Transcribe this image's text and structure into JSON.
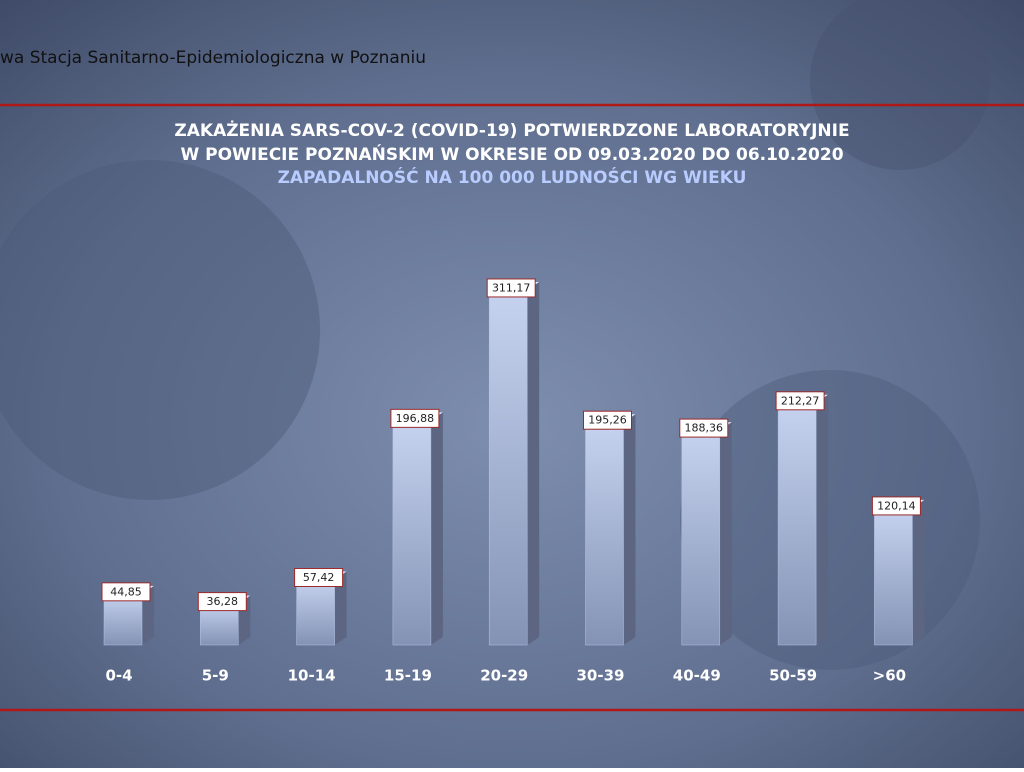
{
  "header": "wa Stacja Sanitarno-Epidemiologiczna w Poznaniu",
  "chart_data": {
    "type": "bar",
    "title": [
      "ZAKAŻENIA SARS-COV-2 (COVID-19) POTWIERDZONE LABORATORYJNIE",
      "W POWIECIE POZNAŃSKIM W OKRESIE OD 09.03.2020 DO 06.10.2020"
    ],
    "subtitle": "ZAPADALNOŚĆ NA 100 000 LUDNOŚCI WG WIEKU",
    "categories": [
      "0-4",
      "5-9",
      "10-14",
      "15-19",
      "20-29",
      "30-39",
      "40-49",
      "50-59",
      ">60"
    ],
    "values": [
      44.85,
      36.28,
      57.42,
      196.88,
      311.17,
      195.26,
      188.36,
      212.27,
      120.14
    ],
    "value_labels": [
      "44,85",
      "36,28",
      "57,42",
      "196,88",
      "311,17",
      "195,26",
      "188,36",
      "212,27",
      "120,14"
    ],
    "color": "#b4c3e6"
  }
}
